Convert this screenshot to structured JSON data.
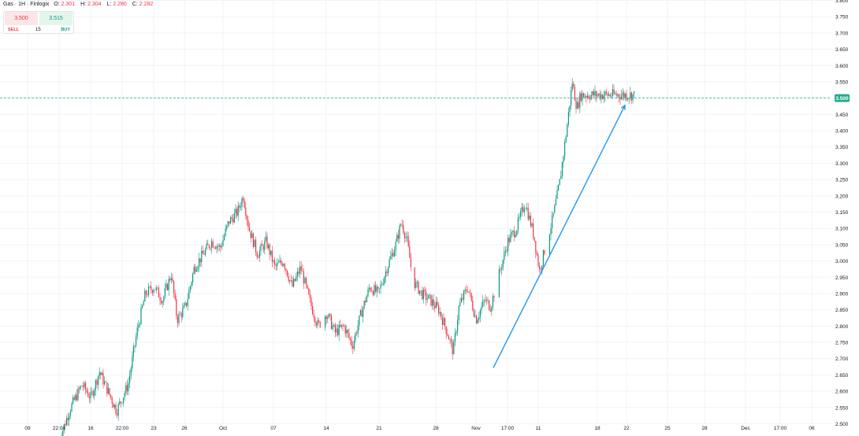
{
  "legend": {
    "symbol": "Gas",
    "interval": "1H",
    "source": "Finlogix",
    "open_label": "O:",
    "open": "2.301",
    "high_label": "H:",
    "high": "2.304",
    "low_label": "L:",
    "low": "2.280",
    "close_label": "C:",
    "close": "2.282"
  },
  "trade_panel": {
    "sell_price": "3.500",
    "buy_price": "3.515",
    "sell_label": "SELL",
    "buy_label": "BUY",
    "quantity": "15"
  },
  "colors": {
    "up": "#089981",
    "down": "#f23645",
    "trendline": "#2196f3",
    "price_line": "#22ab94",
    "grid": "#f0f3fa"
  },
  "chart_data": {
    "type": "candlestick",
    "title": "",
    "ylim": [
      2.5,
      3.8
    ],
    "y_ticks": [
      "2.500",
      "2.550",
      "2.600",
      "2.650",
      "2.700",
      "2.750",
      "2.800",
      "2.850",
      "2.900",
      "2.950",
      "3.000",
      "3.050",
      "3.100",
      "3.150",
      "3.200",
      "3.250",
      "3.300",
      "3.350",
      "3.400",
      "3.450",
      "3.500",
      "3.550",
      "3.600",
      "3.650",
      "3.700",
      "3.750",
      "3.800"
    ],
    "x_ticks": [
      "09",
      "22:00",
      "16",
      "22:00",
      "23",
      "26",
      "Oct",
      "07",
      "14",
      "21",
      "28",
      "Nov",
      "17:00",
      "11",
      "18",
      "22",
      "25",
      "28",
      "Dec",
      "17:00",
      "06"
    ],
    "current_price": 3.5,
    "current_price_label": "3.500",
    "price_path": [
      [
        0.0,
        2.45
      ],
      [
        0.02,
        2.55
      ],
      [
        0.04,
        2.62
      ],
      [
        0.055,
        2.58
      ],
      [
        0.07,
        2.66
      ],
      [
        0.085,
        2.6
      ],
      [
        0.1,
        2.54
      ],
      [
        0.12,
        2.62
      ],
      [
        0.135,
        2.78
      ],
      [
        0.15,
        2.9
      ],
      [
        0.165,
        2.92
      ],
      [
        0.18,
        2.88
      ],
      [
        0.195,
        2.96
      ],
      [
        0.205,
        2.82
      ],
      [
        0.22,
        2.86
      ],
      [
        0.235,
        2.98
      ],
      [
        0.25,
        3.02
      ],
      [
        0.265,
        3.06
      ],
      [
        0.28,
        3.04
      ],
      [
        0.295,
        3.12
      ],
      [
        0.31,
        3.15
      ],
      [
        0.32,
        3.2
      ],
      [
        0.33,
        3.1
      ],
      [
        0.345,
        3.02
      ],
      [
        0.36,
        3.06
      ],
      [
        0.375,
        2.98
      ],
      [
        0.39,
        3.0
      ],
      [
        0.405,
        2.92
      ],
      [
        0.42,
        2.98
      ],
      [
        0.435,
        2.88
      ],
      [
        0.45,
        2.8
      ],
      [
        0.465,
        2.84
      ],
      [
        0.48,
        2.78
      ],
      [
        0.495,
        2.8
      ],
      [
        0.51,
        2.74
      ],
      [
        0.525,
        2.84
      ],
      [
        0.54,
        2.92
      ],
      [
        0.555,
        2.9
      ],
      [
        0.57,
        2.98
      ],
      [
        0.585,
        3.05
      ],
      [
        0.595,
        3.12
      ],
      [
        0.605,
        3.06
      ],
      [
        0.615,
        2.94
      ],
      [
        0.63,
        2.9
      ],
      [
        0.645,
        2.88
      ],
      [
        0.66,
        2.85
      ],
      [
        0.675,
        2.78
      ],
      [
        0.685,
        2.72
      ],
      [
        0.695,
        2.86
      ],
      [
        0.71,
        2.92
      ],
      [
        0.725,
        2.82
      ],
      [
        0.74,
        2.88
      ],
      [
        0.75,
        2.86
      ],
      [
        0.765,
        2.96
      ],
      [
        0.78,
        3.06
      ],
      [
        0.795,
        3.1
      ],
      [
        0.81,
        3.18
      ],
      [
        0.825,
        3.08
      ],
      [
        0.835,
        2.97
      ],
      [
        0.845,
        3.04
      ],
      [
        0.858,
        3.13
      ],
      [
        0.87,
        3.24
      ],
      [
        0.882,
        3.4
      ],
      [
        0.892,
        3.55
      ],
      [
        0.9,
        3.47
      ],
      [
        0.907,
        3.51
      ]
    ],
    "trendline": {
      "from": [
        2.672,
        "Nov"
      ],
      "to": [
        3.478,
        "22"
      ]
    }
  }
}
